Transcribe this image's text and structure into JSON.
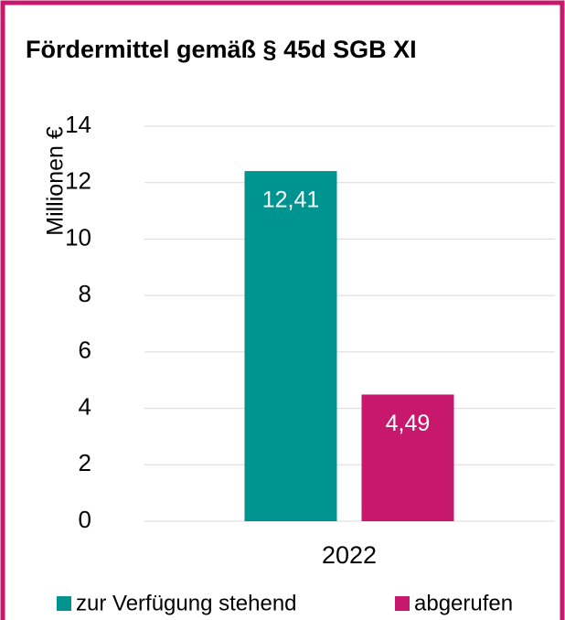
{
  "chart_data": {
    "type": "bar",
    "title": "Fördermittel gemäß § 45d SGB XI",
    "y_label": "Millionen €",
    "categories": [
      "2022"
    ],
    "series": [
      {
        "name": "zur Verfügung stehend",
        "color": "#009490",
        "values": [
          12.41
        ],
        "value_labels": [
          "12,41"
        ]
      },
      {
        "name": "abgerufen",
        "color": "#c8186e",
        "values": [
          4.49
        ],
        "value_labels": [
          "4,49"
        ]
      }
    ],
    "ylim": [
      0,
      14
    ],
    "yticks": [
      0,
      2,
      4,
      6,
      8,
      10,
      12,
      14
    ],
    "grid": true,
    "legend": "bottom"
  }
}
